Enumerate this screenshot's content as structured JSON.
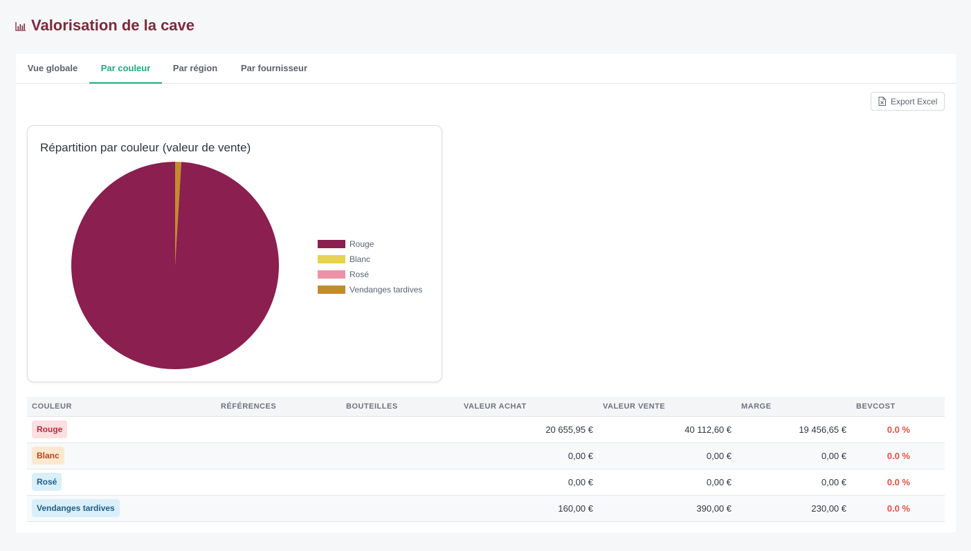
{
  "page": {
    "title": "Valorisation de la cave"
  },
  "tabs": [
    {
      "label": "Vue globale",
      "active": false
    },
    {
      "label": "Par couleur",
      "active": true
    },
    {
      "label": "Par région",
      "active": false
    },
    {
      "label": "Par fournisseur",
      "active": false
    }
  ],
  "toolbar": {
    "export_label": "Export Excel"
  },
  "chart_data": {
    "type": "pie",
    "title": "Répartition par couleur (valeur de vente)",
    "categories": [
      "Rouge",
      "Blanc",
      "Rosé",
      "Vendanges tardives"
    ],
    "values": [
      40112.6,
      0,
      0,
      390.0
    ],
    "colors": [
      "#8b1f4f",
      "#e8d24f",
      "#ec92a6",
      "#c38b2e"
    ],
    "legend": "right"
  },
  "table": {
    "headers": [
      "COULEUR",
      "RÉFÉRENCES",
      "BOUTEILLES",
      "VALEUR ACHAT",
      "VALEUR VENTE",
      "MARGE",
      "BEVCOST"
    ],
    "rows": [
      {
        "couleur": "Rouge",
        "references": "",
        "bouteilles": "",
        "achat": "20 655,95 €",
        "vente": "40 112,60 €",
        "marge": "19 456,65 €",
        "bevcost": "0.0 %",
        "badge_bg": "#fcdfe0",
        "badge_fg": "#b12f3a"
      },
      {
        "couleur": "Blanc",
        "references": "",
        "bouteilles": "",
        "achat": "0,00 €",
        "vente": "0,00 €",
        "marge": "0,00 €",
        "bevcost": "0.0 %",
        "badge_bg": "#fde8cf",
        "badge_fg": "#b0461e"
      },
      {
        "couleur": "Rosé",
        "references": "",
        "bouteilles": "",
        "achat": "0,00 €",
        "vente": "0,00 €",
        "marge": "0,00 €",
        "bevcost": "0.0 %",
        "badge_bg": "#d9effa",
        "badge_fg": "#1f5f86"
      },
      {
        "couleur": "Vendanges tardives",
        "references": "",
        "bouteilles": "",
        "achat": "160,00 €",
        "vente": "390,00 €",
        "marge": "230,00 €",
        "bevcost": "0.0 %",
        "badge_bg": "#d9effa",
        "badge_fg": "#1f5f86"
      }
    ]
  }
}
